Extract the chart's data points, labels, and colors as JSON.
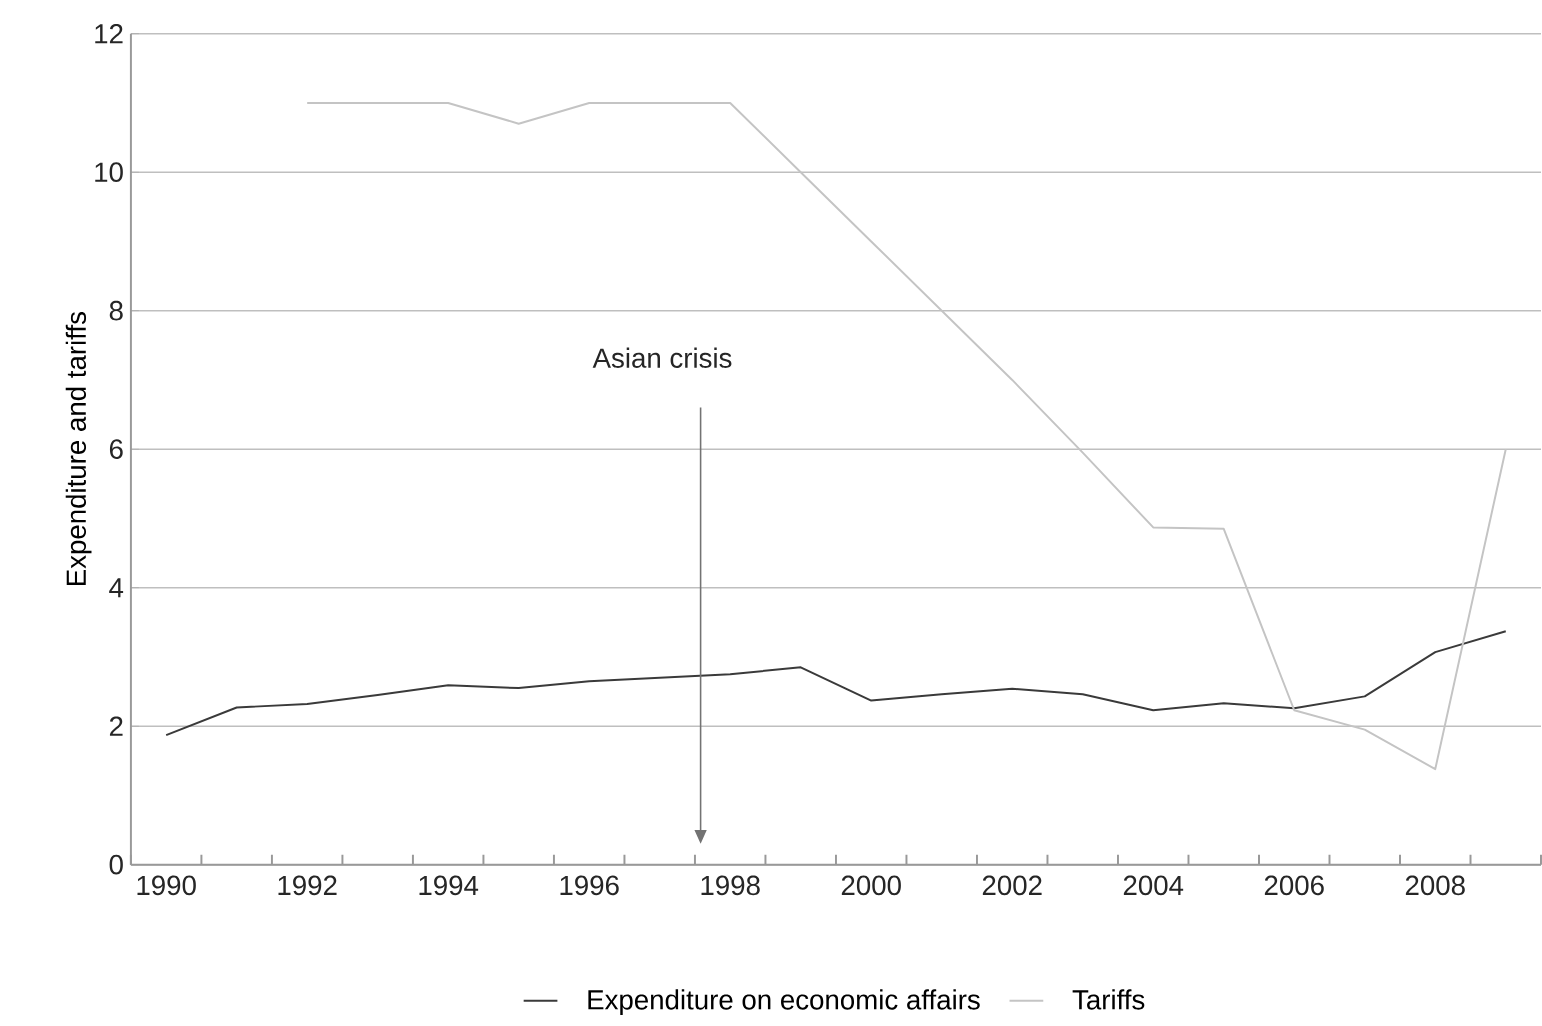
{
  "chart_data": {
    "type": "line",
    "ylabel": "Expenditure and tariffs",
    "categories": [
      "1990",
      null,
      "1992",
      null,
      "1994",
      null,
      "1996",
      null,
      "1998",
      null,
      "2000",
      null,
      "2002",
      null,
      "2004",
      null,
      "2006",
      null,
      "2008",
      null
    ],
    "series": [
      {
        "name": "Expenditure on economic affairs",
        "color": "#3a3a3a",
        "values": [
          1.87,
          2.27,
          2.32,
          2.45,
          2.59,
          2.55,
          2.65,
          2.7,
          2.75,
          2.85,
          2.37,
          2.46,
          2.54,
          2.46,
          2.23,
          2.33,
          2.26,
          2.43,
          3.07,
          3.37
        ]
      },
      {
        "name": "Tariffs",
        "color": "#c4c4c4",
        "values": [
          null,
          null,
          11,
          11,
          11,
          10.7,
          11,
          11,
          11,
          10,
          9,
          8,
          7,
          5.95,
          4.87,
          4.85,
          2.23,
          1.95,
          1.38,
          6
        ]
      }
    ],
    "ylim": [
      0,
      12
    ],
    "yticks": [
      0,
      2,
      4,
      6,
      8,
      10,
      12
    ],
    "grid": "y",
    "legend": "bottom",
    "annotations": [
      "Asian crisis"
    ]
  }
}
